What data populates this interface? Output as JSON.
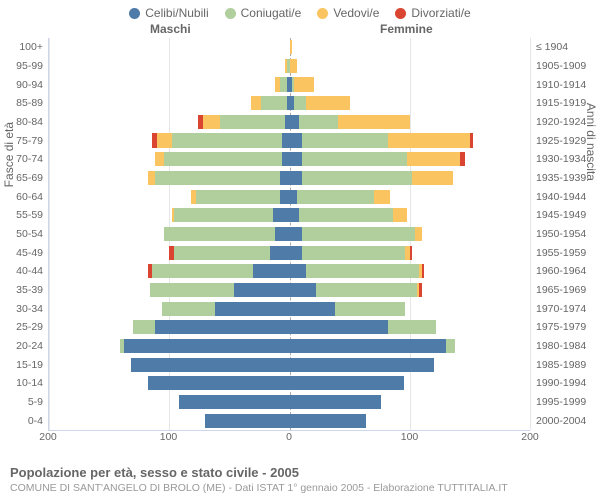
{
  "legend": [
    {
      "label": "Celibi/Nubili",
      "color": "#4f7ba8"
    },
    {
      "label": "Coniugati/e",
      "color": "#b0cf9c"
    },
    {
      "label": "Vedovi/e",
      "color": "#fac561"
    },
    {
      "label": "Divorziati/e",
      "color": "#d94530"
    }
  ],
  "headers": {
    "m": "Maschi",
    "f": "Femmine"
  },
  "y_left_title": "Fasce di età",
  "y_right_title": "Anni di nascita",
  "x_axis": {
    "min": -200,
    "max": 200,
    "ticks": [
      -200,
      -100,
      0,
      100,
      200
    ],
    "tick_labels": [
      "200",
      "100",
      "0",
      "100",
      "200"
    ]
  },
  "age_labels": [
    "0-4",
    "5-9",
    "10-14",
    "15-19",
    "20-24",
    "25-29",
    "30-34",
    "35-39",
    "40-44",
    "45-49",
    "50-54",
    "55-59",
    "60-64",
    "65-69",
    "70-74",
    "75-79",
    "80-84",
    "85-89",
    "90-94",
    "95-99",
    "100+"
  ],
  "birth_labels": [
    "2000-2004",
    "1995-1999",
    "1990-1994",
    "1985-1989",
    "1980-1984",
    "1975-1979",
    "1970-1974",
    "1965-1969",
    "1960-1964",
    "1955-1959",
    "1950-1954",
    "1945-1949",
    "1940-1944",
    "1935-1939",
    "1930-1934",
    "1925-1929",
    "1920-1924",
    "1915-1919",
    "1910-1914",
    "1905-1909",
    "≤ 1904"
  ],
  "data": [
    {
      "m": {
        "cel": 70,
        "con": 0,
        "ved": 0,
        "div": 0
      },
      "f": {
        "cel": 64,
        "con": 0,
        "ved": 0,
        "div": 0
      }
    },
    {
      "m": {
        "cel": 92,
        "con": 0,
        "ved": 0,
        "div": 0
      },
      "f": {
        "cel": 76,
        "con": 0,
        "ved": 0,
        "div": 0
      }
    },
    {
      "m": {
        "cel": 118,
        "con": 0,
        "ved": 0,
        "div": 0
      },
      "f": {
        "cel": 95,
        "con": 0,
        "ved": 0,
        "div": 0
      }
    },
    {
      "m": {
        "cel": 132,
        "con": 0,
        "ved": 0,
        "div": 0
      },
      "f": {
        "cel": 120,
        "con": 0,
        "ved": 0,
        "div": 0
      }
    },
    {
      "m": {
        "cel": 138,
        "con": 3,
        "ved": 0,
        "div": 0
      },
      "f": {
        "cel": 130,
        "con": 8,
        "ved": 0,
        "div": 0
      }
    },
    {
      "m": {
        "cel": 112,
        "con": 18,
        "ved": 0,
        "div": 0
      },
      "f": {
        "cel": 82,
        "con": 40,
        "ved": 0,
        "div": 0
      }
    },
    {
      "m": {
        "cel": 62,
        "con": 44,
        "ved": 0,
        "div": 0
      },
      "f": {
        "cel": 38,
        "con": 58,
        "ved": 0,
        "div": 0
      }
    },
    {
      "m": {
        "cel": 46,
        "con": 70,
        "ved": 0,
        "div": 0
      },
      "f": {
        "cel": 22,
        "con": 84,
        "ved": 2,
        "div": 2
      }
    },
    {
      "m": {
        "cel": 30,
        "con": 84,
        "ved": 0,
        "div": 4
      },
      "f": {
        "cel": 14,
        "con": 94,
        "ved": 2,
        "div": 2
      }
    },
    {
      "m": {
        "cel": 16,
        "con": 80,
        "ved": 0,
        "div": 4
      },
      "f": {
        "cel": 10,
        "con": 86,
        "ved": 4,
        "div": 2
      }
    },
    {
      "m": {
        "cel": 12,
        "con": 92,
        "ved": 0,
        "div": 0
      },
      "f": {
        "cel": 10,
        "con": 94,
        "ved": 6,
        "div": 0
      }
    },
    {
      "m": {
        "cel": 14,
        "con": 82,
        "ved": 2,
        "div": 0
      },
      "f": {
        "cel": 8,
        "con": 78,
        "ved": 12,
        "div": 0
      }
    },
    {
      "m": {
        "cel": 8,
        "con": 70,
        "ved": 4,
        "div": 0
      },
      "f": {
        "cel": 6,
        "con": 64,
        "ved": 14,
        "div": 0
      }
    },
    {
      "m": {
        "cel": 8,
        "con": 104,
        "ved": 6,
        "div": 0
      },
      "f": {
        "cel": 10,
        "con": 92,
        "ved": 34,
        "div": 0
      }
    },
    {
      "m": {
        "cel": 6,
        "con": 98,
        "ved": 8,
        "div": 0
      },
      "f": {
        "cel": 10,
        "con": 88,
        "ved": 44,
        "div": 4
      }
    },
    {
      "m": {
        "cel": 6,
        "con": 92,
        "ved": 12,
        "div": 4
      },
      "f": {
        "cel": 10,
        "con": 72,
        "ved": 68,
        "div": 3
      }
    },
    {
      "m": {
        "cel": 4,
        "con": 54,
        "ved": 14,
        "div": 4
      },
      "f": {
        "cel": 8,
        "con": 32,
        "ved": 60,
        "div": 0
      }
    },
    {
      "m": {
        "cel": 2,
        "con": 22,
        "ved": 8,
        "div": 0
      },
      "f": {
        "cel": 4,
        "con": 10,
        "ved": 36,
        "div": 0
      }
    },
    {
      "m": {
        "cel": 2,
        "con": 6,
        "ved": 4,
        "div": 0
      },
      "f": {
        "cel": 2,
        "con": 2,
        "ved": 16,
        "div": 0
      }
    },
    {
      "m": {
        "cel": 0,
        "con": 2,
        "ved": 2,
        "div": 0
      },
      "f": {
        "cel": 0,
        "con": 0,
        "ved": 6,
        "div": 0
      }
    },
    {
      "m": {
        "cel": 0,
        "con": 0,
        "ved": 0,
        "div": 0
      },
      "f": {
        "cel": 0,
        "con": 0,
        "ved": 2,
        "div": 0
      }
    }
  ],
  "footer": {
    "title": "Popolazione per età, sesso e stato civile - 2005",
    "sub": "COMUNE DI SANT'ANGELO DI BROLO (ME) - Dati ISTAT 1° gennaio 2005 - Elaborazione TUTTITALIA.IT"
  },
  "chart_style": {
    "bg": "#ffffff",
    "grid": "#e6e6e6",
    "axis": "#ccd6eb",
    "center": "#aaaaaa"
  }
}
